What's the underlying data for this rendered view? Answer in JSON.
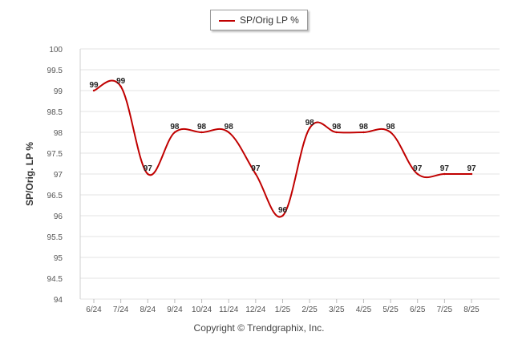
{
  "chart_data": {
    "type": "line",
    "title": "",
    "xlabel": "",
    "ylabel": "SP/Orig. LP %",
    "categories": [
      "6/24",
      "7/24",
      "8/24",
      "9/24",
      "10/24",
      "11/24",
      "12/24",
      "1/25",
      "2/25",
      "3/25",
      "4/25",
      "5/25",
      "6/25",
      "7/25",
      "8/25"
    ],
    "series": [
      {
        "name": "SP/Orig LP %",
        "color": "#c00000",
        "values": [
          99,
          99.1,
          97,
          98,
          98,
          98,
          97,
          96,
          98.1,
          98,
          98,
          98,
          97,
          97,
          97
        ],
        "labels": [
          "99",
          "99",
          "97",
          "98",
          "98",
          "98",
          "97",
          "96",
          "98",
          "98",
          "98",
          "98",
          "97",
          "97",
          "97"
        ]
      }
    ],
    "ylim": [
      94,
      100
    ],
    "yticks": [
      "94",
      "94.5",
      "95",
      "95.5",
      "96",
      "96.5",
      "97",
      "97.5",
      "98",
      "98.5",
      "99",
      "99.5",
      "100"
    ],
    "grid": true,
    "legend": "top-center"
  },
  "footer": {
    "copyright": "Copyright © Trendgraphix, Inc."
  }
}
